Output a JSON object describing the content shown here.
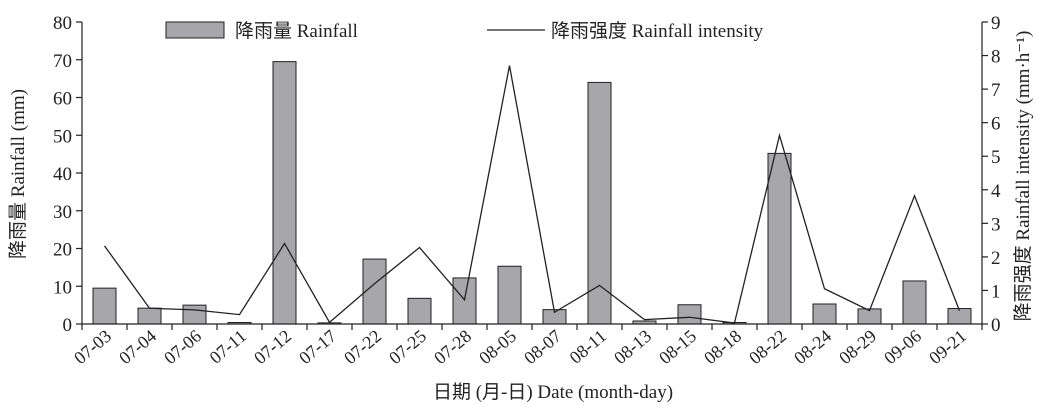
{
  "chart_data": {
    "type": "bar",
    "categories": [
      "07-03",
      "07-04",
      "07-06",
      "07-11",
      "07-12",
      "07-17",
      "07-22",
      "07-25",
      "07-28",
      "08-05",
      "08-07",
      "08-11",
      "08-13",
      "08-15",
      "08-18",
      "08-22",
      "08-24",
      "08-29",
      "09-06",
      "09-21"
    ],
    "series": [
      {
        "name": "降雨量 Rainfall",
        "type": "bar",
        "axis": "left",
        "values": [
          9.5,
          4.2,
          5.0,
          0.4,
          69.5,
          0.3,
          17.2,
          6.8,
          12.2,
          15.3,
          3.8,
          64.0,
          0.8,
          5.1,
          0.4,
          45.2,
          5.3,
          4.0,
          11.4,
          4.1
        ]
      },
      {
        "name": "降雨强度 Rainfall intensity",
        "type": "line",
        "axis": "right",
        "values": [
          2.33,
          0.47,
          0.42,
          0.28,
          2.4,
          0.05,
          1.2,
          2.28,
          0.72,
          7.7,
          0.35,
          1.15,
          0.13,
          0.2,
          0.03,
          5.62,
          1.05,
          0.4,
          3.82,
          0.4
        ]
      }
    ],
    "xlabel": "日期 (月-日) Date (month-day)",
    "ylabel": "降雨量 Rainfall (mm)",
    "y2label": "降雨强度 Rainfall intensity (mm·h⁻¹)",
    "ylim": [
      0,
      80
    ],
    "y2lim": [
      0,
      9
    ],
    "yticks": [
      "0",
      "10",
      "20",
      "30",
      "40",
      "50",
      "60",
      "70",
      "80"
    ],
    "y2ticks": [
      "0",
      "1",
      "2",
      "3",
      "4",
      "5",
      "6",
      "7",
      "8",
      "9"
    ],
    "legend": {
      "placement": "top",
      "bar_label": "降雨量 Rainfall",
      "line_label": "降雨强度 Rainfall intensity"
    },
    "grid": false,
    "colors": {
      "bar_fill": "#a7a7ab",
      "bar_stroke": "#222222",
      "line": "#222222"
    }
  }
}
